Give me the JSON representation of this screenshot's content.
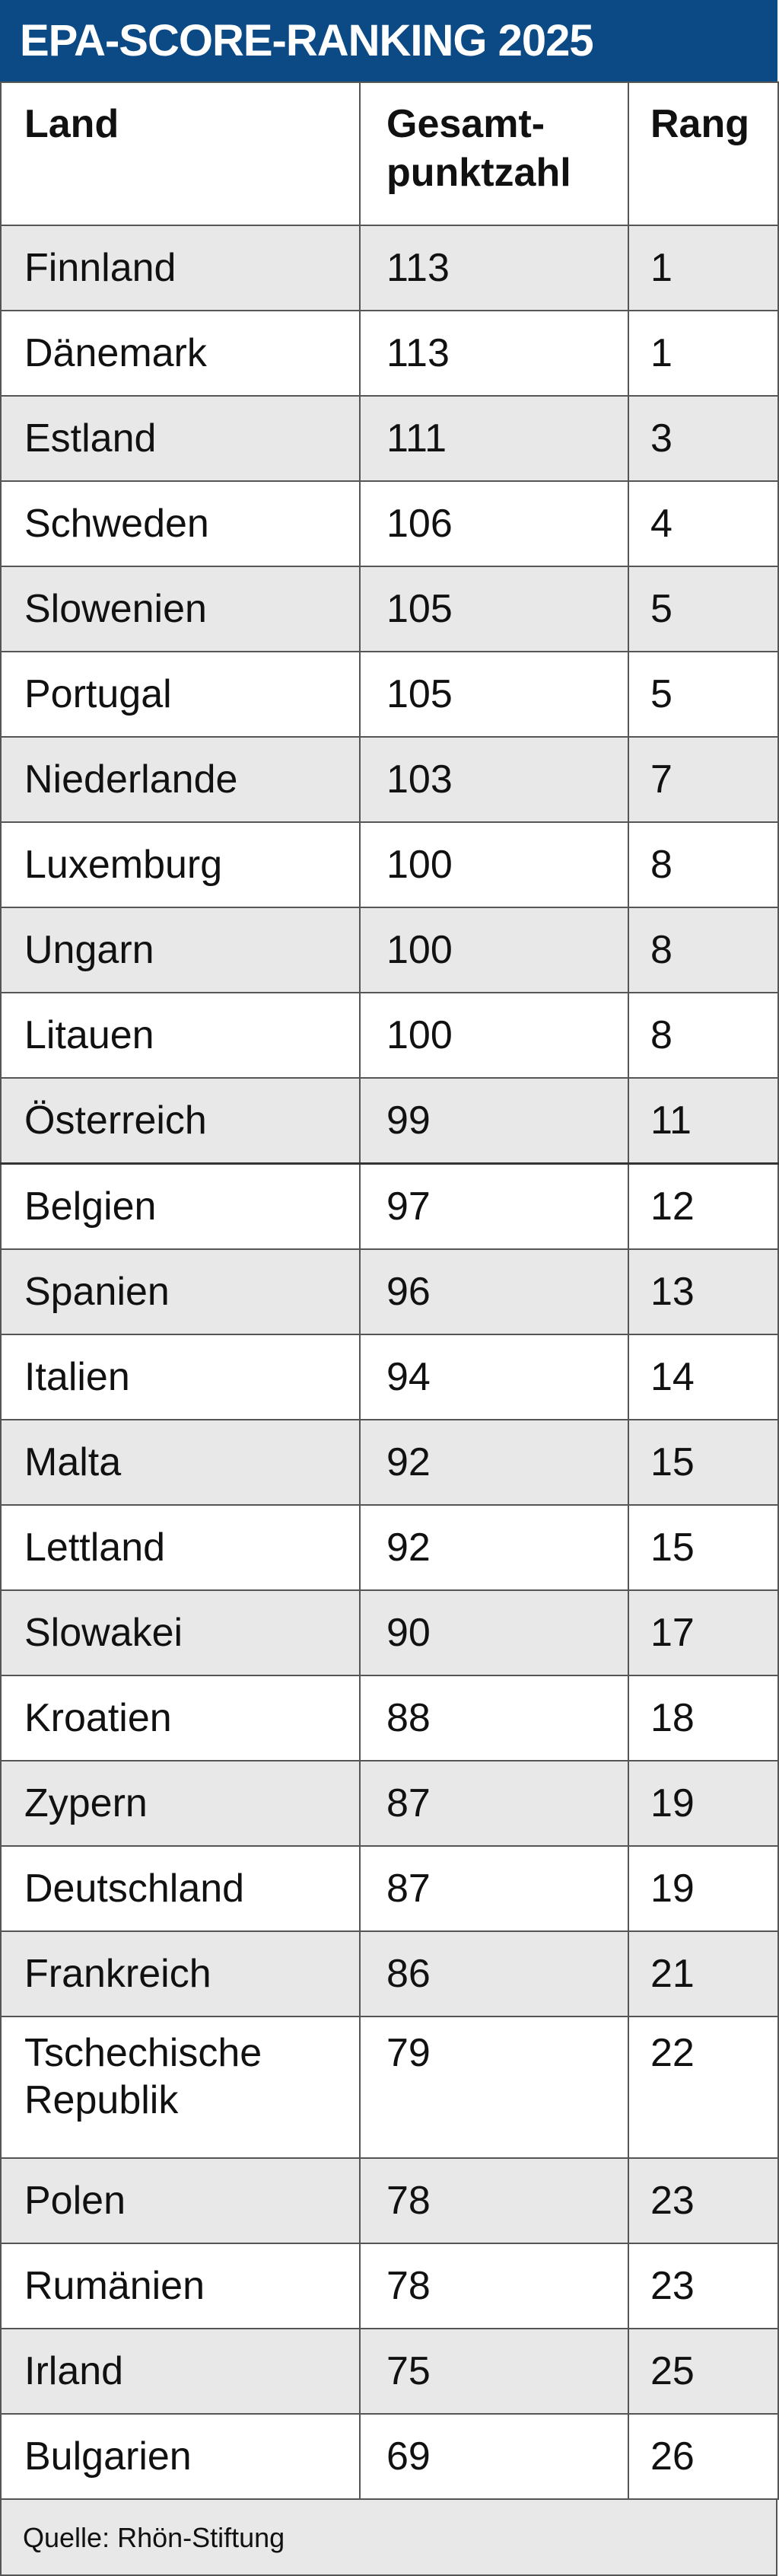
{
  "title": "EPA-SCORE-RANKING 2025",
  "headers": {
    "land": "Land",
    "score_line1": "Gesamt-",
    "score_line2": "punktzahl",
    "rank": "Rang"
  },
  "rows": [
    {
      "land": "Finnland",
      "score": "113",
      "rank": "1"
    },
    {
      "land": "Dänemark",
      "score": "113",
      "rank": "1"
    },
    {
      "land": "Estland",
      "score": "111",
      "rank": "3"
    },
    {
      "land": "Schweden",
      "score": "106",
      "rank": "4"
    },
    {
      "land": "Slowenien",
      "score": "105",
      "rank": "5"
    },
    {
      "land": "Portugal",
      "score": "105",
      "rank": "5"
    },
    {
      "land": "Niederlande",
      "score": "103",
      "rank": "7"
    },
    {
      "land": "Luxemburg",
      "score": "100",
      "rank": "8"
    },
    {
      "land": "Ungarn",
      "score": "100",
      "rank": "8"
    },
    {
      "land": "Litauen",
      "score": "100",
      "rank": "8"
    },
    {
      "land": "Österreich",
      "score": "99",
      "rank": "11"
    },
    {
      "land": "Belgien",
      "score": "97",
      "rank": "12"
    },
    {
      "land": "Spanien",
      "score": "96",
      "rank": "13"
    },
    {
      "land": "Italien",
      "score": "94",
      "rank": "14"
    },
    {
      "land": "Malta",
      "score": "92",
      "rank": "15"
    },
    {
      "land": "Lettland",
      "score": "92",
      "rank": "15"
    },
    {
      "land": "Slowakei",
      "score": "90",
      "rank": "17"
    },
    {
      "land": "Kroatien",
      "score": "88",
      "rank": "18"
    },
    {
      "land": "Zypern",
      "score": "87",
      "rank": "19"
    },
    {
      "land": "Deutschland",
      "score": "87",
      "rank": "19"
    },
    {
      "land": "Frankreich",
      "score": "86",
      "rank": "21"
    },
    {
      "land": "Tschechische Republik",
      "land_line1": "Tschechische",
      "land_line2": "Republik",
      "score": "79",
      "rank": "22"
    },
    {
      "land": "Polen",
      "score": "78",
      "rank": "23"
    },
    {
      "land": "Rumänien",
      "score": "78",
      "rank": "23"
    },
    {
      "land": "Irland",
      "score": "75",
      "rank": "25"
    },
    {
      "land": "Bulgarien",
      "score": "69",
      "rank": "26"
    }
  ],
  "footer": "Quelle: Rhön-Stiftung",
  "colors": {
    "title_bg": "#0b4a85",
    "stripe": "#e8e8e8"
  }
}
